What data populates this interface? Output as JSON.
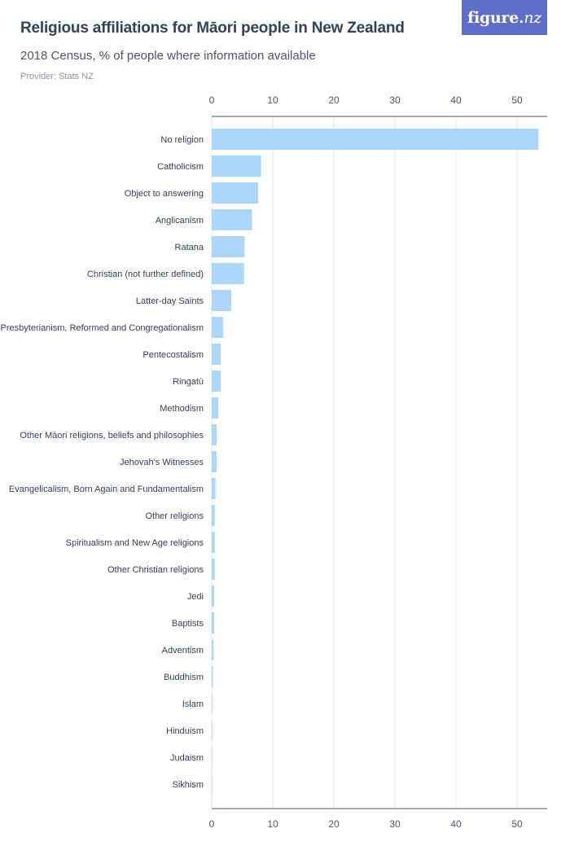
{
  "header": {
    "title": "Religious affiliations for Māori people in New Zealand",
    "subtitle": "2018 Census, % of people where information available",
    "provider": "Provider: Stats NZ",
    "logo_main": "figure.",
    "logo_nz": "nz"
  },
  "colors": {
    "bar": "#acd6fa",
    "logo_bg": "#5f6ec9",
    "title": "#34415a"
  },
  "chart_data": {
    "type": "bar",
    "orientation": "horizontal",
    "title": "Religious affiliations for Māori people in New Zealand",
    "subtitle": "2018 Census, % of people where information available",
    "xlabel": "",
    "ylabel": "",
    "xlim": [
      0,
      55
    ],
    "ticks": [
      0,
      10,
      20,
      30,
      40,
      50
    ],
    "grid": true,
    "categories": [
      "No religion",
      "Catholicism",
      "Object to answering",
      "Anglicanism",
      "Ratana",
      "Christian (not further defined)",
      "Latter-day Saints",
      "Presbyterianism, Reformed and Congregationalism",
      "Pentecostalism",
      "Ringatū",
      "Methodism",
      "Other Māori religions, beliefs and philosophies",
      "Jehovah's Witnesses",
      "Evangelicalism, Born Again and Fundamentalism",
      "Other religions",
      "Spiritualism and New Age religions",
      "Other Christian religions",
      "Jedi",
      "Baptists",
      "Adventism",
      "Buddhism",
      "Islam",
      "Hinduism",
      "Judaism",
      "Sikhism"
    ],
    "values": [
      53.5,
      8.1,
      7.6,
      6.6,
      5.4,
      5.3,
      3.2,
      1.9,
      1.5,
      1.5,
      1.1,
      0.8,
      0.8,
      0.6,
      0.5,
      0.5,
      0.5,
      0.4,
      0.4,
      0.3,
      0.2,
      0.1,
      0.1,
      0.05,
      0.05
    ]
  }
}
